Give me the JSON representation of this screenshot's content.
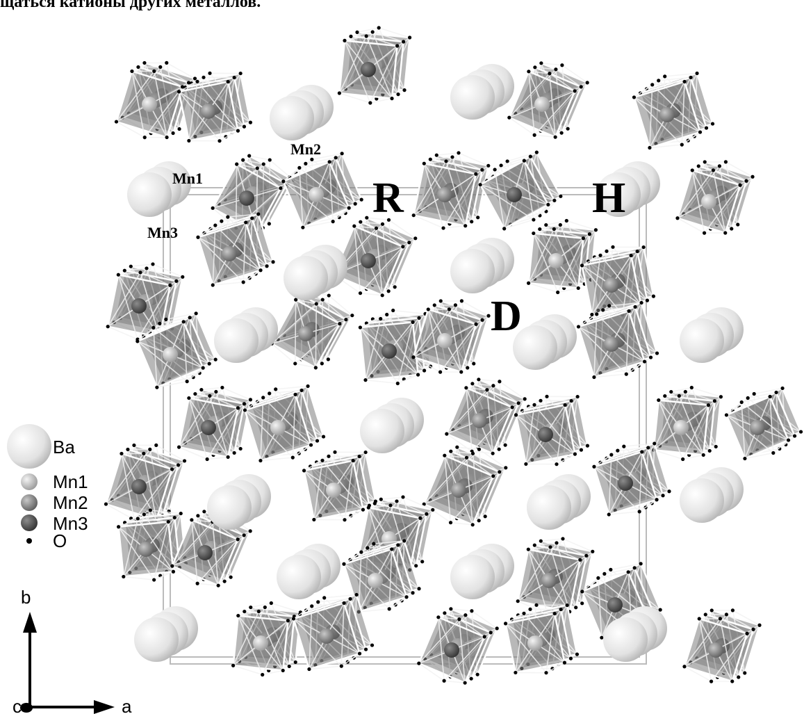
{
  "header": {
    "text": "щаться   катионы   других   металлов."
  },
  "labels": {
    "mn2": "Mn2",
    "mn1": "Mn1",
    "mn3": "Mn3",
    "r": "R",
    "h": "H",
    "d": "D"
  },
  "legend": [
    {
      "label": "Ba"
    },
    {
      "label": "Mn1"
    },
    {
      "label": "Mn2"
    },
    {
      "label": "Mn3"
    },
    {
      "label": "O"
    }
  ],
  "axes": {
    "b": "b",
    "a": "a",
    "c": "c"
  }
}
